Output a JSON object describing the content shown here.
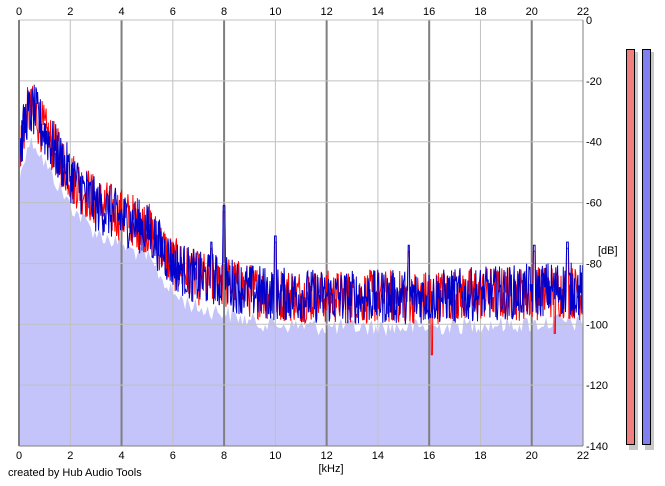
{
  "footer": {
    "credit": "created by Hub Audio Tools"
  },
  "colors": {
    "background": "#ffffff",
    "plot_fill": "#c4c4fa",
    "grid_major": "#7f7f7f",
    "grid_minor": "#c0c0c0",
    "channel_left": "#ff0000",
    "channel_right": "#0000cc",
    "meter_left": "#f08080",
    "meter_right": "#8080f0"
  },
  "chart_data": {
    "type": "line",
    "title": "",
    "xlabel": "[kHz]",
    "ylabel": "[dB]",
    "xlim": [
      0,
      22
    ],
    "ylim": [
      -140,
      0
    ],
    "x_ticks": [
      "0",
      "2",
      "4",
      "6",
      "8",
      "10",
      "12",
      "14",
      "16",
      "18",
      "20",
      "22"
    ],
    "y_ticks": [
      "0",
      "-20",
      "-40",
      "-60",
      "-80",
      "-100",
      "-120",
      "-140"
    ],
    "grid": true,
    "legend": "none",
    "series": [
      {
        "color": "#ff0000",
        "envelope": {
          "x": [
            0,
            0.3,
            0.6,
            1,
            1.5,
            2,
            3,
            4,
            5,
            6,
            7,
            8,
            9,
            10,
            12,
            14,
            16,
            18,
            20,
            21,
            22
          ],
          "y": [
            -44,
            -31,
            -30,
            -37,
            -44,
            -51,
            -60,
            -64,
            -68,
            -80,
            -85,
            -86,
            -89,
            -90,
            -91,
            -91,
            -91,
            -90,
            -90,
            -89,
            -90
          ]
        }
      },
      {
        "color": "#0000cc",
        "envelope": {
          "x": [
            0,
            0.3,
            0.6,
            1,
            1.5,
            2,
            3,
            4,
            5,
            6,
            7,
            8,
            9,
            10,
            12,
            14,
            16,
            18,
            20,
            21,
            22
          ],
          "y": [
            -44,
            -31,
            -30,
            -37,
            -44,
            -51,
            -61,
            -65,
            -69,
            -80,
            -85,
            -86,
            -89,
            -90,
            -91,
            -91,
            -91,
            -90,
            -89,
            -88,
            -89
          ]
        }
      }
    ],
    "peaks": [
      {
        "x": 8.0,
        "y": -63
      },
      {
        "x": 7.5,
        "y": -75
      },
      {
        "x": 10.0,
        "y": -73
      },
      {
        "x": 15.2,
        "y": -76
      },
      {
        "x": 20.1,
        "y": -76
      },
      {
        "x": 21.4,
        "y": -75
      }
    ],
    "dips": [
      {
        "x": 16.1,
        "y": -110
      },
      {
        "x": 20.9,
        "y": -103
      }
    ]
  },
  "level_meters": [
    {
      "channel": "left",
      "color": "#f08080",
      "level": 1.0
    },
    {
      "channel": "right",
      "color": "#8080f0",
      "level": 1.0
    }
  ]
}
